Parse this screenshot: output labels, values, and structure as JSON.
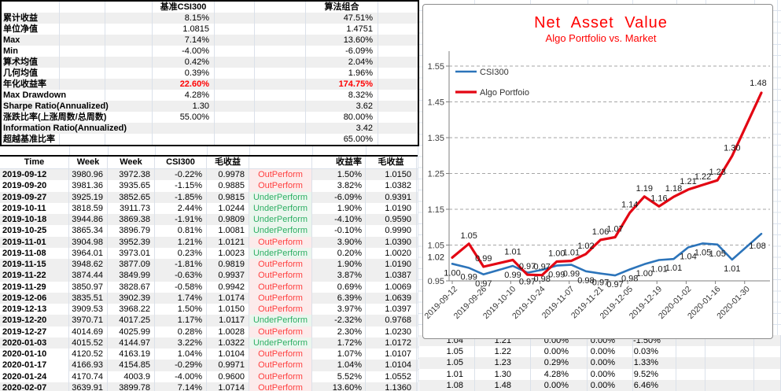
{
  "stats_table": {
    "col1_header": "基准CSI300",
    "col2_header": "算法组合",
    "rows": [
      {
        "label": "累计收益",
        "v1": "8.15%",
        "v2": "47.51%",
        "highlight": false
      },
      {
        "label": "单位净值",
        "v1": "1.0815",
        "v2": "1.4751",
        "highlight": false
      },
      {
        "label": "Max",
        "v1": "7.14%",
        "v2": "13.60%",
        "highlight": false
      },
      {
        "label": "Min",
        "v1": "-4.00%",
        "v2": "-6.09%",
        "highlight": false
      },
      {
        "label": "算术均值",
        "v1": "0.42%",
        "v2": "2.04%",
        "highlight": false
      },
      {
        "label": "几何均值",
        "v1": "0.39%",
        "v2": "1.96%",
        "highlight": false
      },
      {
        "label": "年化收益率",
        "v1": "22.60%",
        "v2": "174.75%",
        "highlight": true
      },
      {
        "label": "Max Drawdown",
        "v1": "4.28%",
        "v2": "8.32%",
        "highlight": false
      },
      {
        "label": "Sharpe Ratio(Annualized)",
        "v1": "1.30",
        "v2": "3.62",
        "highlight": false
      },
      {
        "label": "涨跌比率(上涨周数/总周数)",
        "v1": "55.00%",
        "v2": "80.00%",
        "highlight": false
      },
      {
        "label": "Information Ratio(Annualized)",
        "v1": "",
        "v2": "3.42",
        "highlight": false
      },
      {
        "label": "超越基准比率",
        "v1": "",
        "v2": "65.00%",
        "highlight": false
      }
    ]
  },
  "weekly_table": {
    "headers": [
      "Time",
      "Week Open",
      "Week Close",
      "CSI300",
      "毛收益",
      "",
      "收益率",
      "毛收益"
    ],
    "rows": [
      [
        "2019-09-12",
        "3980.96",
        "3972.38",
        "-0.22%",
        "0.9978",
        "OutPerform",
        "1.50%",
        "1.0150"
      ],
      [
        "2019-09-20",
        "3981.36",
        "3935.65",
        "-1.15%",
        "0.9885",
        "OutPerform",
        "3.82%",
        "1.0382"
      ],
      [
        "2019-09-27",
        "3925.19",
        "3852.65",
        "-1.85%",
        "0.9815",
        "UnderPerform",
        "-6.09%",
        "0.9391"
      ],
      [
        "2019-10-11",
        "3818.59",
        "3911.73",
        "2.44%",
        "1.0244",
        "UnderPerform",
        "1.90%",
        "1.0190"
      ],
      [
        "2019-10-18",
        "3944.86",
        "3869.38",
        "-1.91%",
        "0.9809",
        "UnderPerform",
        "-4.10%",
        "0.9590"
      ],
      [
        "2019-10-25",
        "3865.34",
        "3896.79",
        "0.81%",
        "1.0081",
        "UnderPerform",
        "-0.10%",
        "0.9990"
      ],
      [
        "2019-11-01",
        "3904.98",
        "3952.39",
        "1.21%",
        "1.0121",
        "OutPerform",
        "3.90%",
        "1.0390"
      ],
      [
        "2019-11-08",
        "3964.01",
        "3973.01",
        "0.23%",
        "1.0023",
        "UnderPerform",
        "0.20%",
        "1.0020"
      ],
      [
        "2019-11-15",
        "3948.62",
        "3877.09",
        "-1.81%",
        "0.9819",
        "OutPerform",
        "1.90%",
        "1.0190"
      ],
      [
        "2019-11-22",
        "3874.44",
        "3849.99",
        "-0.63%",
        "0.9937",
        "OutPerform",
        "3.87%",
        "1.0387"
      ],
      [
        "2019-11-29",
        "3850.97",
        "3828.67",
        "-0.58%",
        "0.9942",
        "OutPerform",
        "0.69%",
        "1.0069"
      ],
      [
        "2019-12-06",
        "3835.51",
        "3902.39",
        "1.74%",
        "1.0174",
        "OutPerform",
        "6.39%",
        "1.0639"
      ],
      [
        "2019-12-13",
        "3909.53",
        "3968.22",
        "1.50%",
        "1.0150",
        "OutPerform",
        "3.97%",
        "1.0397"
      ],
      [
        "2019-12-20",
        "3970.71",
        "4017.25",
        "1.17%",
        "1.0117",
        "UnderPerform",
        "-2.32%",
        "0.9768"
      ],
      [
        "2019-12-27",
        "4014.69",
        "4025.99",
        "0.28%",
        "1.0028",
        "OutPerform",
        "2.30%",
        "1.0230"
      ],
      [
        "2020-01-03",
        "4015.52",
        "4144.97",
        "3.22%",
        "1.0322",
        "UnderPerform",
        "1.72%",
        "1.0172"
      ],
      [
        "2020-01-10",
        "4120.52",
        "4163.19",
        "1.04%",
        "1.0104",
        "OutPerform",
        "1.07%",
        "1.0107"
      ],
      [
        "2020-01-17",
        "4166.93",
        "4154.85",
        "-0.29%",
        "0.9971",
        "OutPerform",
        "1.04%",
        "1.0104"
      ],
      [
        "2020-01-24",
        "4170.74",
        "4003.9",
        "-4.00%",
        "0.9600",
        "OutPerform",
        "5.52%",
        "1.0552"
      ],
      [
        "2020-02-07",
        "3639.91",
        "3899.78",
        "7.14%",
        "1.0714",
        "OutPerform",
        "13.60%",
        "1.1360"
      ]
    ]
  },
  "extension_table": {
    "rows": [
      [
        "1.04",
        "1.21",
        "0.00%",
        "0.00%",
        "-1.50%"
      ],
      [
        "1.05",
        "1.22",
        "0.00%",
        "0.00%",
        "0.03%"
      ],
      [
        "1.05",
        "1.23",
        "0.29%",
        "0.00%",
        "1.33%"
      ],
      [
        "1.01",
        "1.30",
        "4.28%",
        "0.00%",
        "9.52%"
      ],
      [
        "1.08",
        "1.48",
        "0.00%",
        "0.00%",
        "6.46%"
      ]
    ]
  },
  "chart_data": {
    "type": "line",
    "title": "Net Asset Value",
    "subtitle": "Algo Portfolio vs. Market",
    "title_color": "#ff0000",
    "legend_position": "top-left-inside",
    "grid": "dashed-horizontal",
    "ylim": [
      0.95,
      1.55
    ],
    "y_ticks": [
      "1.55",
      "1.45",
      "1.35",
      "1.25",
      "1.15",
      "1.05",
      "0.95"
    ],
    "x_tick_labels": [
      "2019-09-12",
      "2019-09-26",
      "2019-10-10",
      "2019-10-24",
      "2019-11-07",
      "2019-11-21",
      "2019-12-05",
      "2019-12-19",
      "2020-01-02",
      "2020-01-16",
      "2020-01-30"
    ],
    "x_tick_days": [
      0,
      14,
      28,
      42,
      56,
      70,
      84,
      98,
      112,
      126,
      140
    ],
    "x_days": [
      0,
      8,
      15,
      29,
      36,
      43,
      50,
      57,
      64,
      71,
      78,
      85,
      92,
      99,
      106,
      113,
      120,
      127,
      134,
      148
    ],
    "series": [
      {
        "name": "CSI300",
        "color": "#2c74ba",
        "values": [
          0.9978,
          0.9863,
          0.9681,
          0.9917,
          0.9728,
          0.9807,
          0.9926,
          0.9949,
          0.9769,
          0.9707,
          0.9651,
          0.9819,
          0.9966,
          1.0083,
          1.0111,
          1.0437,
          1.0546,
          1.0515,
          1.0094,
          1.0815
        ],
        "labels": [
          "1.00",
          "0.99",
          "0.97",
          "0.99",
          "0.97",
          "0.98",
          "0.99",
          "0.99",
          "0.98",
          "0.97",
          "0.97",
          "0.98",
          "1.00",
          "1.01",
          "1.01",
          "1.04",
          "1.05",
          "1.05",
          "1.01",
          "1.08"
        ]
      },
      {
        "name": "Algo Portfoio",
        "color": "#e30613",
        "values": [
          1.015,
          1.0538,
          0.9896,
          1.0084,
          0.9671,
          0.9661,
          1.0038,
          1.0058,
          1.0249,
          1.0646,
          1.0719,
          1.1404,
          1.1857,
          1.1582,
          1.1848,
          1.2052,
          1.2181,
          1.2308,
          1.2987,
          1.4753
        ],
        "labels": [
          "1.02",
          "1.05",
          "0.99",
          "1.01",
          "0.97",
          "0.97",
          "1.00",
          "1.01",
          "1.02",
          "1.06",
          "1.07",
          "1.14",
          "1.19",
          "1.16",
          "1.18",
          "1.21",
          "1.22",
          "1.23",
          "1.30",
          "1.48"
        ]
      }
    ]
  },
  "colors": {
    "outperform_text": "#ff4040",
    "outperform_bg": "#fcebeb",
    "underperform_text": "#2eaf64",
    "underperform_bg": "#ebf6ee",
    "highlight_text": "#ff0000",
    "band": "#efefef",
    "gridline": "#dde4ee"
  }
}
